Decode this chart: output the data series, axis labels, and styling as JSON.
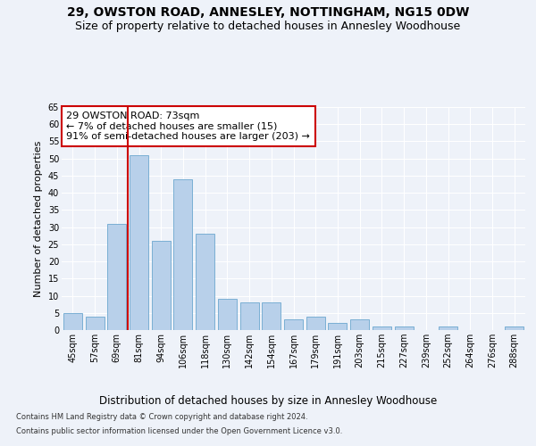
{
  "title1": "29, OWSTON ROAD, ANNESLEY, NOTTINGHAM, NG15 0DW",
  "title2": "Size of property relative to detached houses in Annesley Woodhouse",
  "xlabel": "Distribution of detached houses by size in Annesley Woodhouse",
  "ylabel": "Number of detached properties",
  "categories": [
    "45sqm",
    "57sqm",
    "69sqm",
    "81sqm",
    "94sqm",
    "106sqm",
    "118sqm",
    "130sqm",
    "142sqm",
    "154sqm",
    "167sqm",
    "179sqm",
    "191sqm",
    "203sqm",
    "215sqm",
    "227sqm",
    "239sqm",
    "252sqm",
    "264sqm",
    "276sqm",
    "288sqm"
  ],
  "values": [
    5,
    4,
    31,
    51,
    26,
    44,
    28,
    9,
    8,
    8,
    3,
    4,
    2,
    3,
    1,
    1,
    0,
    1,
    0,
    0,
    1
  ],
  "bar_color": "#b8d0ea",
  "bar_edge_color": "#7aafd4",
  "vline_color": "#cc0000",
  "annotation_text": "29 OWSTON ROAD: 73sqm\n← 7% of detached houses are smaller (15)\n91% of semi-detached houses are larger (203) →",
  "annotation_box_color": "#ffffff",
  "annotation_box_edge_color": "#cc0000",
  "ylim": [
    0,
    65
  ],
  "yticks": [
    0,
    5,
    10,
    15,
    20,
    25,
    30,
    35,
    40,
    45,
    50,
    55,
    60,
    65
  ],
  "footer1": "Contains HM Land Registry data © Crown copyright and database right 2024.",
  "footer2": "Contains public sector information licensed under the Open Government Licence v3.0.",
  "bg_color": "#eef2f9",
  "plot_bg_color": "#eef2f9",
  "grid_color": "#ffffff",
  "title_fontsize": 10,
  "subtitle_fontsize": 9,
  "tick_fontsize": 7,
  "ylabel_fontsize": 8,
  "xlabel_fontsize": 8.5,
  "footer_fontsize": 6,
  "annotation_fontsize": 8
}
